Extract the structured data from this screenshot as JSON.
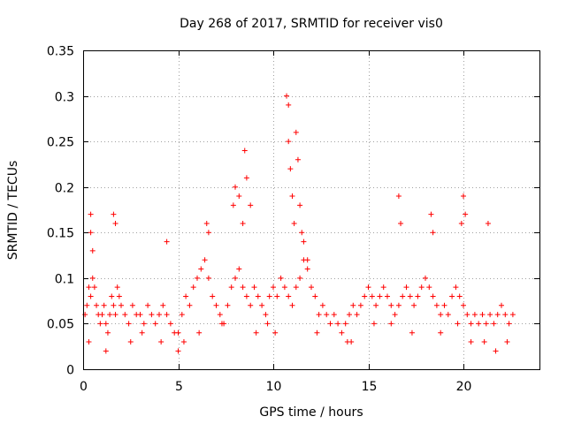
{
  "chart_data": {
    "type": "scatter",
    "title": "Day 268 of 2017, SRMTID for receiver vis0",
    "xlabel": "GPS time / hours",
    "ylabel": "SRMTID / TECUs",
    "xlim": [
      0,
      24
    ],
    "ylim": [
      0,
      0.35
    ],
    "xticks": [
      0,
      5,
      10,
      15,
      20
    ],
    "xtick_labels": [
      "0",
      "5",
      "10",
      "15",
      "20"
    ],
    "yticks": [
      0,
      0.05,
      0.1,
      0.15,
      0.2,
      0.25,
      0.3,
      0.35
    ],
    "ytick_labels": [
      "0",
      "0.05",
      "0.1",
      "0.15",
      "0.2",
      "0.25",
      "0.3",
      "0.35"
    ],
    "grid": true,
    "marker": "plus",
    "marker_color": "#ff0000",
    "series": [
      {
        "name": "vis0",
        "x": [
          0.1,
          0.2,
          0.3,
          0.4,
          0.5,
          0.6,
          0.7,
          0.8,
          0.9,
          1.0,
          1.1,
          1.2,
          1.3,
          1.4,
          1.5,
          1.6,
          1.7,
          1.8,
          1.9,
          2.0,
          2.2,
          2.4,
          2.6,
          2.8,
          3.0,
          3.2,
          3.4,
          3.6,
          3.8,
          4.0,
          4.2,
          4.4,
          4.6,
          4.8,
          5.0,
          5.2,
          5.4,
          5.6,
          5.8,
          6.0,
          6.2,
          6.4,
          6.6,
          6.8,
          7.0,
          7.2,
          7.4,
          7.6,
          7.8,
          8.0,
          8.2,
          8.4,
          8.6,
          8.8,
          9.0,
          9.2,
          9.4,
          9.6,
          9.8,
          10.0,
          10.2,
          10.4,
          10.6,
          10.8,
          11.0,
          11.2,
          11.4,
          11.6,
          11.8,
          12.0,
          12.2,
          12.4,
          12.6,
          12.8,
          13.0,
          13.2,
          13.4,
          13.6,
          13.8,
          14.0,
          14.2,
          14.4,
          14.6,
          14.8,
          15.0,
          15.2,
          15.4,
          15.6,
          15.8,
          16.0,
          16.2,
          16.4,
          16.6,
          16.8,
          17.0,
          17.2,
          17.4,
          17.6,
          17.8,
          18.0,
          18.2,
          18.4,
          18.6,
          18.8,
          19.0,
          19.2,
          19.4,
          19.6,
          19.8,
          20.0,
          20.2,
          20.4,
          20.6,
          20.8,
          21.0,
          21.2,
          21.4,
          21.6,
          21.8,
          22.0,
          22.2,
          22.4,
          22.6,
          0.4,
          0.4,
          0.5,
          1.6,
          1.7,
          4.4,
          6.5,
          6.6,
          7.9,
          8.0,
          8.2,
          8.4,
          8.5,
          8.6,
          8.8,
          10.7,
          10.8,
          10.8,
          10.9,
          11.0,
          11.1,
          11.2,
          11.3,
          11.4,
          11.5,
          11.6,
          11.8,
          16.6,
          16.7,
          18.3,
          18.4,
          19.9,
          20.0,
          20.1,
          21.3,
          0.3,
          1.2,
          2.5,
          3.1,
          4.1,
          5.0,
          5.3,
          6.1,
          7.3,
          9.1,
          9.7,
          10.1,
          12.3,
          13.9,
          14.1,
          15.3,
          16.2,
          17.3,
          18.8,
          19.7,
          20.4,
          21.1,
          21.7,
          22.3
        ],
        "y": [
          0.06,
          0.07,
          0.09,
          0.08,
          0.1,
          0.09,
          0.07,
          0.06,
          0.05,
          0.06,
          0.07,
          0.05,
          0.04,
          0.06,
          0.08,
          0.07,
          0.06,
          0.09,
          0.08,
          0.07,
          0.06,
          0.05,
          0.07,
          0.06,
          0.06,
          0.05,
          0.07,
          0.06,
          0.05,
          0.06,
          0.07,
          0.06,
          0.05,
          0.04,
          0.04,
          0.06,
          0.08,
          0.07,
          0.09,
          0.1,
          0.11,
          0.12,
          0.1,
          0.08,
          0.07,
          0.06,
          0.05,
          0.07,
          0.09,
          0.1,
          0.11,
          0.09,
          0.08,
          0.07,
          0.09,
          0.08,
          0.07,
          0.06,
          0.08,
          0.09,
          0.08,
          0.1,
          0.09,
          0.08,
          0.07,
          0.09,
          0.1,
          0.12,
          0.11,
          0.09,
          0.08,
          0.06,
          0.07,
          0.06,
          0.05,
          0.06,
          0.05,
          0.04,
          0.05,
          0.06,
          0.07,
          0.06,
          0.07,
          0.08,
          0.09,
          0.08,
          0.07,
          0.08,
          0.09,
          0.08,
          0.07,
          0.06,
          0.07,
          0.08,
          0.09,
          0.08,
          0.07,
          0.08,
          0.09,
          0.1,
          0.09,
          0.08,
          0.07,
          0.06,
          0.07,
          0.06,
          0.08,
          0.09,
          0.08,
          0.07,
          0.06,
          0.05,
          0.06,
          0.05,
          0.06,
          0.05,
          0.06,
          0.05,
          0.06,
          0.07,
          0.06,
          0.05,
          0.06,
          0.17,
          0.15,
          0.13,
          0.17,
          0.16,
          0.14,
          0.16,
          0.15,
          0.18,
          0.2,
          0.19,
          0.16,
          0.24,
          0.21,
          0.18,
          0.3,
          0.29,
          0.25,
          0.22,
          0.19,
          0.16,
          0.26,
          0.23,
          0.18,
          0.15,
          0.14,
          0.12,
          0.19,
          0.16,
          0.17,
          0.15,
          0.16,
          0.19,
          0.17,
          0.16,
          0.03,
          0.02,
          0.03,
          0.04,
          0.03,
          0.02,
          0.03,
          0.04,
          0.05,
          0.04,
          0.05,
          0.04,
          0.04,
          0.03,
          0.03,
          0.05,
          0.05,
          0.04,
          0.04,
          0.05,
          0.03,
          0.03,
          0.02,
          0.03
        ]
      }
    ]
  }
}
